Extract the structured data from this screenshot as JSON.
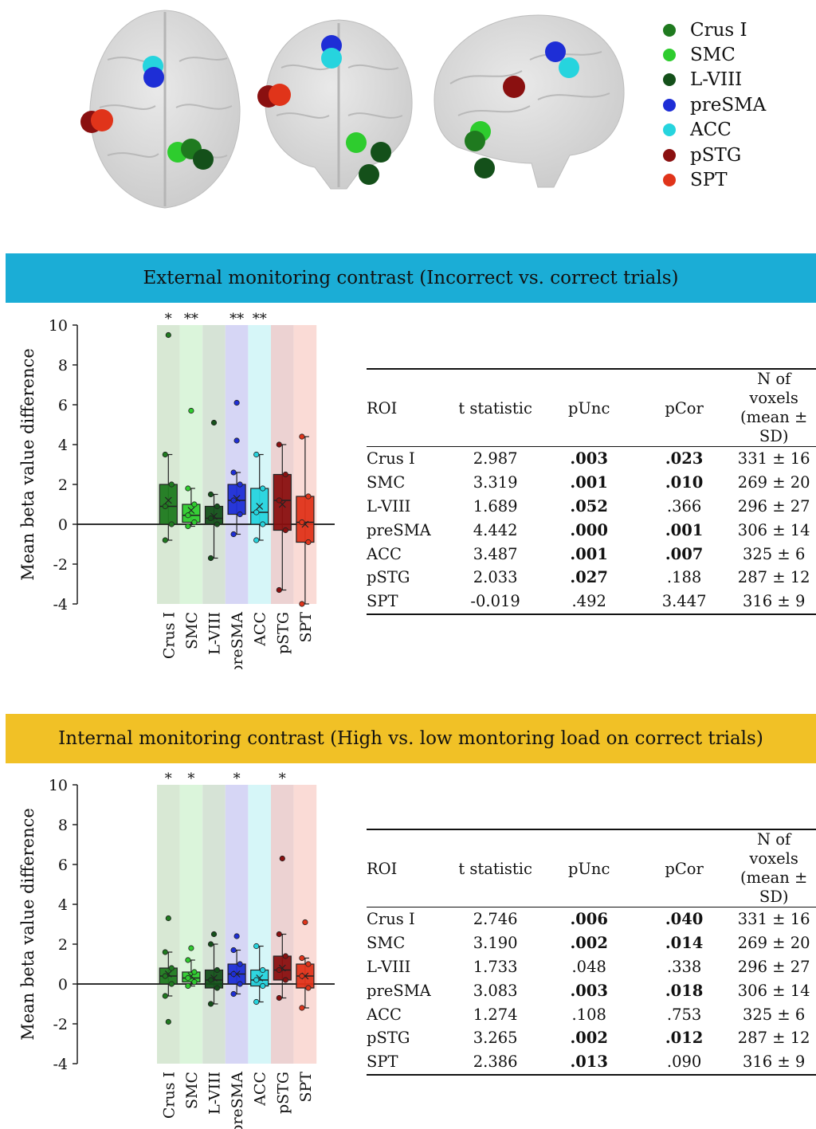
{
  "legend": [
    {
      "name": "Crus I",
      "color": "#1f7a1f"
    },
    {
      "name": "SMC",
      "color": "#2ecc2e"
    },
    {
      "name": "L-VIII",
      "color": "#14501a"
    },
    {
      "name": "preSMA",
      "color": "#1e2ed6"
    },
    {
      "name": "ACC",
      "color": "#26d4de"
    },
    {
      "name": "pSTG",
      "color": "#8a1010"
    },
    {
      "name": "SPT",
      "color": "#e0341a"
    }
  ],
  "panels": {
    "external": {
      "title": "External monitoring contrast (Incorrect vs. correct trials)",
      "table": {
        "headers": [
          "ROI",
          "t statistic",
          "pUnc",
          "pCor",
          "N of voxels",
          "(mean ± SD)"
        ],
        "rows": [
          [
            "Crus I",
            "2.987",
            ".003",
            ".023",
            "331 ± 16"
          ],
          [
            "SMC",
            "3.319",
            ".001",
            ".010",
            "269 ± 20"
          ],
          [
            "L-VIII",
            "1.689",
            ".052",
            ".366",
            "296 ± 27"
          ],
          [
            "preSMA",
            "4.442",
            ".000",
            ".001",
            "306 ± 14"
          ],
          [
            "ACC",
            "3.487",
            ".001",
            ".007",
            "325 ± 6"
          ],
          [
            "pSTG",
            "2.033",
            ".027",
            ".188",
            "287 ± 12"
          ],
          [
            "SPT",
            "-0.019",
            ".492",
            "3.447",
            "316 ± 9"
          ]
        ],
        "bold_punc": [
          true,
          true,
          true,
          true,
          true,
          true,
          false
        ],
        "bold_pcor": [
          true,
          true,
          false,
          true,
          true,
          false,
          false
        ]
      }
    },
    "internal": {
      "title": "Internal monitoring contrast (High vs. low montoring load on correct trials)",
      "table": {
        "headers": [
          "ROI",
          "t statistic",
          "pUnc",
          "pCor",
          "N of voxels",
          "(mean ± SD)"
        ],
        "rows": [
          [
            "Crus I",
            "2.746",
            ".006",
            ".040",
            "331 ± 16"
          ],
          [
            "SMC",
            "3.190",
            ".002",
            ".014",
            "269 ± 20"
          ],
          [
            "L-VIII",
            "1.733",
            ".048",
            ".338",
            "296 ± 27"
          ],
          [
            "preSMA",
            "3.083",
            ".003",
            ".018",
            "306 ± 14"
          ],
          [
            "ACC",
            "1.274",
            ".108",
            ".753",
            "325 ± 6"
          ],
          [
            "pSTG",
            "3.265",
            ".002",
            ".012",
            "287 ± 12"
          ],
          [
            "SPT",
            "2.386",
            ".013",
            ".090",
            "316 ± 9"
          ]
        ],
        "bold_punc": [
          true,
          true,
          false,
          true,
          false,
          true,
          true
        ],
        "bold_pcor": [
          true,
          true,
          false,
          true,
          false,
          true,
          false
        ]
      }
    }
  },
  "chart_data": [
    {
      "type": "box",
      "ylabel": "Mean beta value difference",
      "ylim": [
        -4,
        10
      ],
      "yticks": [
        "10",
        "8",
        "6",
        "4",
        "2",
        "0",
        "-2",
        "-4"
      ],
      "categories": [
        "Crus I",
        "SMC",
        "L-VIII",
        "preSMA",
        "ACC",
        "pSTG",
        "SPT"
      ],
      "significance": [
        "*",
        "**",
        "",
        "**",
        "**",
        "",
        ""
      ],
      "boxes": [
        {
          "q1": 0.0,
          "median": 0.9,
          "q3": 2.0,
          "mean": 1.2,
          "whisker_low": -0.8,
          "whisker_high": 3.5
        },
        {
          "q1": 0.1,
          "median": 0.45,
          "q3": 1.0,
          "mean": 0.7,
          "whisker_low": -0.1,
          "whisker_high": 1.8
        },
        {
          "q1": 0.0,
          "median": 0.3,
          "q3": 0.9,
          "mean": 0.4,
          "whisker_low": -1.7,
          "whisker_high": 1.5
        },
        {
          "q1": 0.5,
          "median": 1.2,
          "q3": 2.0,
          "mean": 1.3,
          "whisker_low": -0.5,
          "whisker_high": 2.6
        },
        {
          "q1": 0.0,
          "median": 0.6,
          "q3": 1.8,
          "mean": 0.9,
          "whisker_low": -0.8,
          "whisker_high": 3.5
        },
        {
          "q1": -0.3,
          "median": 1.2,
          "q3": 2.5,
          "mean": 1.0,
          "whisker_low": -3.3,
          "whisker_high": 4.0
        },
        {
          "q1": -0.9,
          "median": 0.1,
          "q3": 1.4,
          "mean": 0.0,
          "whisker_low": -4.0,
          "whisker_high": 4.4
        }
      ],
      "outliers": [
        [
          9.5
        ],
        [
          5.7
        ],
        [
          5.1
        ],
        [
          6.1,
          4.2
        ],
        [],
        [],
        []
      ]
    },
    {
      "type": "box",
      "ylabel": "Mean beta value difference",
      "ylim": [
        -4,
        10
      ],
      "yticks": [
        "10",
        "8",
        "6",
        "4",
        "2",
        "0",
        "-2",
        "-4"
      ],
      "categories": [
        "Crus I",
        "SMC",
        "L-VIII",
        "preSMA",
        "ACC",
        "pSTG",
        "SPT"
      ],
      "significance": [
        "*",
        "*",
        "",
        "*",
        "",
        "*",
        ""
      ],
      "boxes": [
        {
          "q1": 0.0,
          "median": 0.4,
          "q3": 0.8,
          "mean": 0.5,
          "whisker_low": -0.6,
          "whisker_high": 1.6
        },
        {
          "q1": 0.1,
          "median": 0.3,
          "q3": 0.6,
          "mean": 0.4,
          "whisker_low": -0.1,
          "whisker_high": 1.2
        },
        {
          "q1": -0.2,
          "median": 0.2,
          "q3": 0.7,
          "mean": 0.3,
          "whisker_low": -1.0,
          "whisker_high": 2.0
        },
        {
          "q1": 0.0,
          "median": 0.5,
          "q3": 1.0,
          "mean": 0.5,
          "whisker_low": -0.5,
          "whisker_high": 1.7
        },
        {
          "q1": -0.1,
          "median": 0.2,
          "q3": 0.7,
          "mean": 0.3,
          "whisker_low": -0.9,
          "whisker_high": 1.9
        },
        {
          "q1": 0.2,
          "median": 0.7,
          "q3": 1.4,
          "mean": 0.8,
          "whisker_low": -0.7,
          "whisker_high": 2.5
        },
        {
          "q1": -0.2,
          "median": 0.4,
          "q3": 1.0,
          "mean": 0.4,
          "whisker_low": -1.2,
          "whisker_high": 1.3
        }
      ],
      "outliers": [
        [
          3.3,
          -1.9
        ],
        [
          1.8
        ],
        [
          2.5
        ],
        [
          2.4
        ],
        [],
        [
          6.3
        ],
        [
          3.1
        ]
      ]
    }
  ]
}
